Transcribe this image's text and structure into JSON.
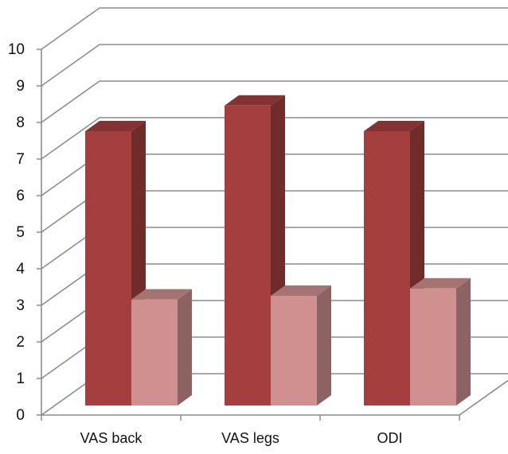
{
  "chart_data": {
    "type": "bar",
    "categories": [
      "VAS back",
      "VAS legs",
      "ODI"
    ],
    "series": [
      {
        "values": [
          7.5,
          8.2,
          7.5
        ],
        "color": "#a53f3f"
      },
      {
        "values": [
          2.9,
          3.0,
          3.2
        ],
        "color": "#d09090"
      }
    ],
    "ylim": [
      0,
      10
    ],
    "yticks": [
      "0",
      "1",
      "2",
      "3",
      "4",
      "5",
      "6",
      "7",
      "8",
      "9",
      "10"
    ],
    "grid": true,
    "legend": "none",
    "style": "3d-clustered-column"
  }
}
